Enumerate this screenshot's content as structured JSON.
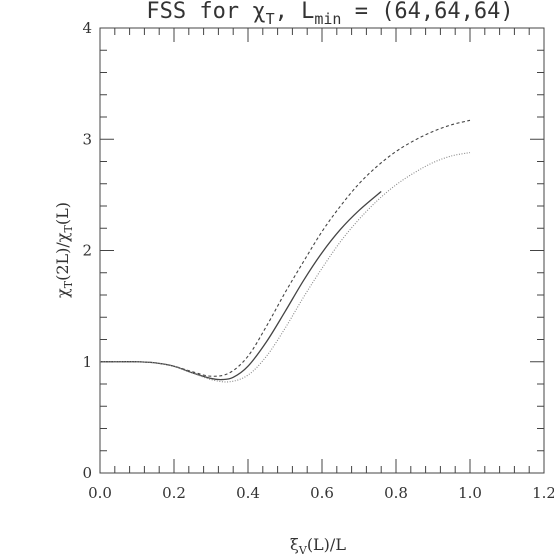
{
  "chart_data": {
    "type": "line",
    "title": {
      "main": "FSS for χ",
      "sub1": "T",
      "mid": ", L",
      "sub2": "min",
      "tail": " = (64,64,64)"
    },
    "xlabel": {
      "main": "ξ",
      "sub": "V",
      "tail": "(L)/L"
    },
    "ylabel": {
      "p1": "χ",
      "s1": "T",
      "p2": "(2L)/χ",
      "s2": "T",
      "p3": "(L)"
    },
    "xlim": [
      0.0,
      1.2
    ],
    "ylim": [
      0,
      4
    ],
    "xticks": [
      "0.0",
      "0.2",
      "0.4",
      "0.6",
      "0.8",
      "1.0",
      "1.2"
    ],
    "yticks": [
      "0",
      "1",
      "2",
      "3",
      "4"
    ],
    "series": [
      {
        "style": "solid",
        "color": "#444444",
        "x": [
          0.0,
          0.05,
          0.1,
          0.15,
          0.2,
          0.25,
          0.3,
          0.33,
          0.36,
          0.4,
          0.45,
          0.5,
          0.55,
          0.6,
          0.65,
          0.7,
          0.76
        ],
        "y": [
          1.0,
          1.0,
          1.0,
          0.99,
          0.96,
          0.9,
          0.85,
          0.84,
          0.86,
          0.96,
          1.18,
          1.45,
          1.73,
          1.98,
          2.19,
          2.36,
          2.53
        ]
      },
      {
        "style": "dashed",
        "color": "#444444",
        "x": [
          0.0,
          0.05,
          0.1,
          0.15,
          0.2,
          0.25,
          0.3,
          0.35,
          0.4,
          0.45,
          0.5,
          0.55,
          0.6,
          0.65,
          0.7,
          0.75,
          0.8,
          0.85,
          0.9,
          0.95,
          1.0
        ],
        "y": [
          1.0,
          1.0,
          1.0,
          0.99,
          0.96,
          0.91,
          0.87,
          0.9,
          1.05,
          1.32,
          1.62,
          1.9,
          2.17,
          2.4,
          2.6,
          2.76,
          2.89,
          2.99,
          3.07,
          3.13,
          3.17
        ]
      },
      {
        "style": "dotted",
        "color": "#888888",
        "x": [
          0.0,
          0.05,
          0.1,
          0.15,
          0.2,
          0.25,
          0.3,
          0.35,
          0.4,
          0.45,
          0.5,
          0.55,
          0.6,
          0.65,
          0.7,
          0.75,
          0.8,
          0.85,
          0.9,
          0.95,
          1.0
        ],
        "y": [
          1.0,
          1.0,
          1.0,
          0.99,
          0.96,
          0.9,
          0.84,
          0.82,
          0.88,
          1.05,
          1.3,
          1.58,
          1.84,
          2.08,
          2.28,
          2.45,
          2.59,
          2.7,
          2.79,
          2.85,
          2.88
        ]
      }
    ]
  }
}
